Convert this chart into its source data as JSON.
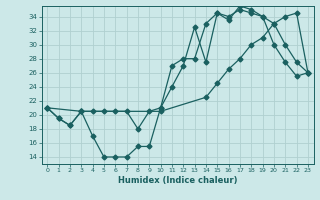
{
  "xlabel": "Humidex (Indice chaleur)",
  "bg_color": "#cce8e8",
  "line_color": "#1a6060",
  "grid_color": "#b0d0d0",
  "xlim": [
    -0.5,
    23.5
  ],
  "ylim": [
    13,
    35.5
  ],
  "yticks": [
    14,
    16,
    18,
    20,
    22,
    24,
    26,
    28,
    30,
    32,
    34
  ],
  "xticks": [
    0,
    1,
    2,
    3,
    4,
    5,
    6,
    7,
    8,
    9,
    10,
    11,
    12,
    13,
    14,
    15,
    16,
    17,
    18,
    19,
    20,
    21,
    22,
    23
  ],
  "line1_x": [
    0,
    1,
    2,
    3,
    4,
    5,
    6,
    7,
    8,
    9,
    10,
    11,
    12,
    13,
    14,
    15,
    16,
    17,
    18,
    19,
    20,
    21,
    22,
    23
  ],
  "line1_y": [
    21,
    19.5,
    18.5,
    20.5,
    17,
    14,
    14,
    14,
    15.5,
    15.5,
    21,
    24,
    27,
    32.5,
    27.5,
    34.5,
    34,
    35,
    34.5,
    34,
    30,
    27.5,
    25.5,
    26
  ],
  "line2_x": [
    0,
    1,
    2,
    3,
    4,
    5,
    6,
    7,
    8,
    9,
    10,
    11,
    12,
    13,
    14,
    15,
    16,
    17,
    18,
    19,
    20,
    21,
    22,
    23
  ],
  "line2_y": [
    21,
    19.5,
    18.5,
    20.5,
    20.5,
    20.5,
    20.5,
    20.5,
    18,
    20.5,
    21,
    27,
    28,
    28,
    33,
    34.5,
    33.5,
    35.5,
    35,
    34,
    33,
    30,
    27.5,
    26
  ],
  "line3_x": [
    0,
    3,
    10,
    14,
    15,
    16,
    17,
    18,
    19,
    20,
    21,
    22,
    23
  ],
  "line3_y": [
    21,
    20.5,
    20.5,
    22.5,
    24.5,
    26.5,
    28,
    30,
    31,
    33,
    34,
    34.5,
    26
  ]
}
